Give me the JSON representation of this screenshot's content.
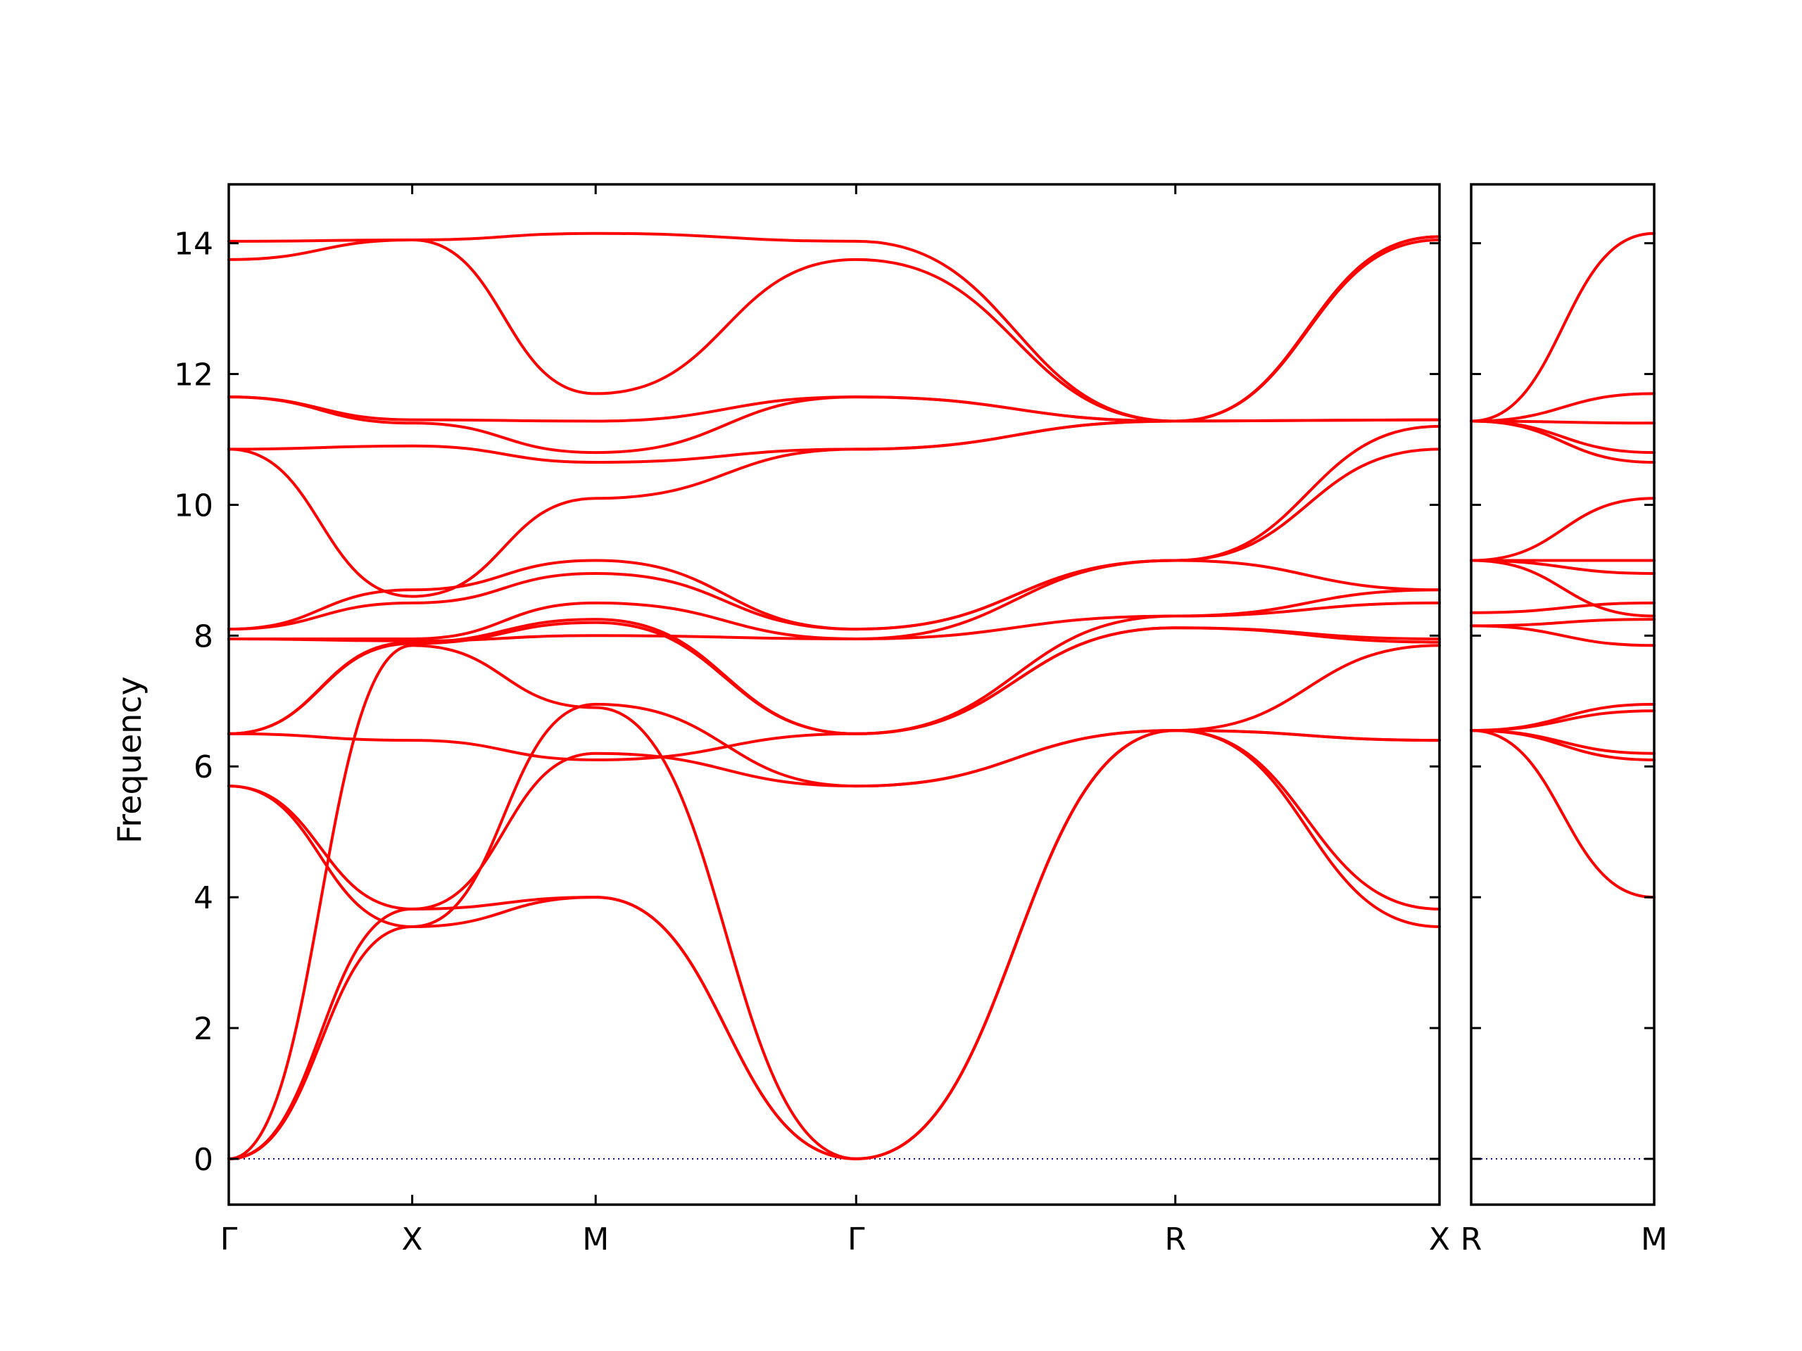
{
  "chart_data": {
    "type": "line",
    "ylabel": "Frequency",
    "ylim": [
      -0.7,
      14.9
    ],
    "yticks": [
      0,
      2,
      4,
      6,
      8,
      10,
      12,
      14
    ],
    "band_color": "#ff0000",
    "zero_line_color": "#00008b",
    "panels": [
      {
        "xlabels": [
          "Γ",
          "X",
          "M",
          "Γ",
          "R",
          "X"
        ],
        "x": [
          0,
          1,
          2,
          3.42,
          5.16,
          6.6
        ],
        "bands": [
          {
            "y": [
              0,
              3.55,
              4.0,
              0,
              6.55,
              3.55
            ]
          },
          {
            "y": [
              0,
              3.82,
              4.0,
              0,
              6.55,
              3.82
            ]
          },
          {
            "y": [
              0,
              7.85,
              6.9,
              0,
              6.55,
              7.85
            ]
          },
          {
            "y": [
              5.7,
              3.55,
              6.95,
              5.7,
              6.55,
              6.4
            ]
          },
          {
            "y": [
              5.7,
              3.82,
              6.2,
              5.7,
              6.55,
              6.4
            ]
          },
          {
            "y": [
              6.5,
              6.4,
              6.1,
              6.5,
              8.12,
              7.9
            ]
          },
          {
            "y": [
              6.5,
              7.88,
              8.2,
              6.5,
              8.12,
              7.95
            ]
          },
          {
            "y": [
              6.5,
              7.9,
              8.25,
              6.5,
              8.3,
              8.5
            ]
          },
          {
            "y": [
              7.95,
              7.92,
              8.0,
              7.95,
              8.3,
              8.7
            ]
          },
          {
            "y": [
              7.95,
              7.95,
              8.5,
              7.95,
              9.15,
              8.7
            ]
          },
          {
            "y": [
              8.1,
              8.5,
              8.95,
              8.1,
              9.15,
              10.85
            ]
          },
          {
            "y": [
              8.1,
              8.7,
              9.15,
              8.1,
              9.15,
              11.2
            ]
          },
          {
            "y": [
              10.85,
              8.6,
              10.1,
              10.85,
              11.28,
              11.3
            ]
          },
          {
            "y": [
              10.85,
              10.9,
              10.65,
              10.85,
              11.28,
              11.3
            ]
          },
          {
            "y": [
              11.65,
              11.25,
              10.8,
              11.65,
              11.28,
              14.05
            ]
          },
          {
            "y": [
              11.65,
              11.3,
              11.28,
              11.65,
              11.28,
              14.1
            ]
          },
          {
            "y": [
              13.75,
              14.05,
              11.7,
              13.75,
              11.28,
              14.1
            ]
          },
          {
            "y": [
              14.03,
              14.05,
              14.15,
              14.03,
              11.28,
              14.1
            ]
          }
        ]
      },
      {
        "xlabels": [
          "R",
          "M"
        ],
        "x": [
          0,
          1
        ],
        "bands": [
          {
            "y": [
              6.55,
              4.0
            ]
          },
          {
            "y": [
              6.55,
              6.1
            ]
          },
          {
            "y": [
              6.55,
              6.2
            ]
          },
          {
            "y": [
              6.55,
              6.85
            ]
          },
          {
            "y": [
              6.55,
              6.95
            ]
          },
          {
            "y": [
              8.15,
              7.85
            ]
          },
          {
            "y": [
              8.15,
              8.25
            ]
          },
          {
            "y": [
              8.35,
              8.5
            ]
          },
          {
            "y": [
              9.15,
              8.3
            ]
          },
          {
            "y": [
              9.15,
              8.95
            ]
          },
          {
            "y": [
              9.15,
              9.15
            ]
          },
          {
            "y": [
              9.15,
              10.1
            ]
          },
          {
            "y": [
              11.28,
              10.65
            ]
          },
          {
            "y": [
              11.28,
              10.8
            ]
          },
          {
            "y": [
              11.28,
              11.25
            ]
          },
          {
            "y": [
              11.28,
              11.7
            ]
          },
          {
            "y": [
              11.28,
              14.15
            ]
          }
        ]
      }
    ]
  }
}
